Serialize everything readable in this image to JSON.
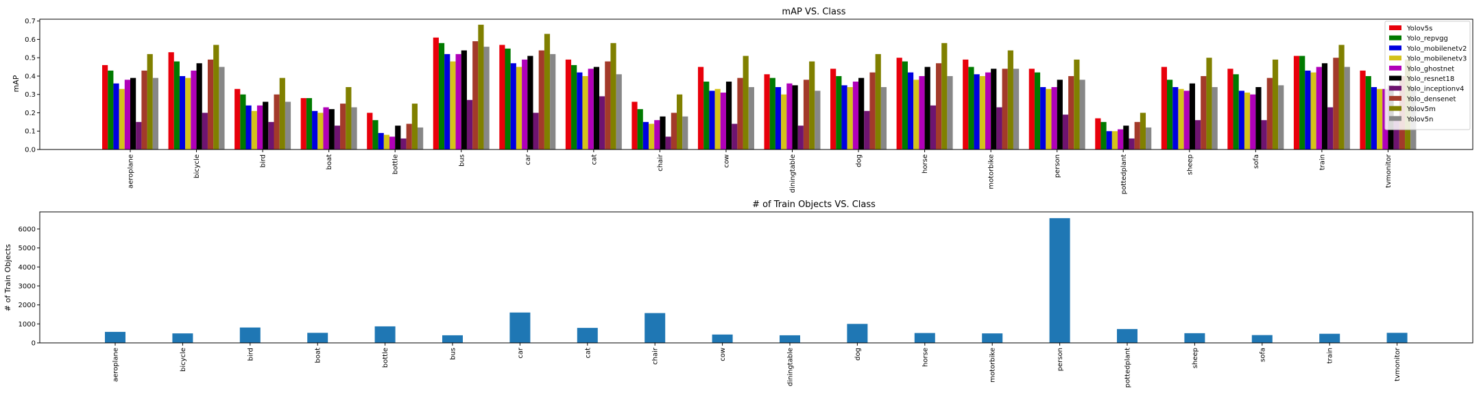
{
  "chart_data": [
    {
      "type": "bar",
      "title": "mAP VS. Class",
      "xlabel": "",
      "ylabel": "mAP",
      "ylim": [
        0,
        0.71
      ],
      "yticks": [
        "0.0",
        "0.1",
        "0.2",
        "0.3",
        "0.4",
        "0.5",
        "0.6",
        "0.7"
      ],
      "legend_position": "top-right",
      "grid": false,
      "categories": [
        "aeroplane",
        "bicycle",
        "bird",
        "boat",
        "bottle",
        "bus",
        "car",
        "cat",
        "chair",
        "cow",
        "diningtable",
        "dog",
        "horse",
        "motorbike",
        "person",
        "pottedplant",
        "sheep",
        "sofa",
        "train",
        "tvmonitor"
      ],
      "series": [
        {
          "name": "Yolov5s",
          "color": "#e8000b",
          "values": [
            0.46,
            0.53,
            0.33,
            0.28,
            0.2,
            0.61,
            0.57,
            0.49,
            0.26,
            0.45,
            0.41,
            0.44,
            0.5,
            0.49,
            0.44,
            0.17,
            0.45,
            0.44,
            0.51,
            0.43
          ]
        },
        {
          "name": "Yolo_repvgg",
          "color": "#007a00",
          "values": [
            0.43,
            0.48,
            0.3,
            0.28,
            0.16,
            0.58,
            0.55,
            0.46,
            0.22,
            0.37,
            0.39,
            0.4,
            0.48,
            0.45,
            0.42,
            0.15,
            0.38,
            0.41,
            0.51,
            0.4
          ]
        },
        {
          "name": "Yolo_mobilenetv2",
          "color": "#0000e0",
          "values": [
            0.36,
            0.4,
            0.24,
            0.21,
            0.09,
            0.52,
            0.47,
            0.42,
            0.15,
            0.32,
            0.34,
            0.35,
            0.42,
            0.41,
            0.34,
            0.1,
            0.34,
            0.32,
            0.43,
            0.34
          ]
        },
        {
          "name": "Yolo_mobilenetv3",
          "color": "#d4c21a",
          "values": [
            0.33,
            0.39,
            0.21,
            0.2,
            0.08,
            0.48,
            0.45,
            0.4,
            0.14,
            0.33,
            0.3,
            0.34,
            0.38,
            0.4,
            0.33,
            0.1,
            0.33,
            0.31,
            0.42,
            0.33
          ]
        },
        {
          "name": "Yolo_ghostnet",
          "color": "#b000b8",
          "values": [
            0.38,
            0.43,
            0.24,
            0.23,
            0.07,
            0.52,
            0.49,
            0.44,
            0.16,
            0.31,
            0.36,
            0.37,
            0.4,
            0.42,
            0.34,
            0.11,
            0.32,
            0.3,
            0.45,
            0.33
          ]
        },
        {
          "name": "Yolo_resnet18",
          "color": "#000000",
          "values": [
            0.39,
            0.47,
            0.26,
            0.22,
            0.13,
            0.54,
            0.51,
            0.45,
            0.18,
            0.37,
            0.35,
            0.39,
            0.45,
            0.44,
            0.38,
            0.13,
            0.36,
            0.34,
            0.47,
            0.35
          ]
        },
        {
          "name": "Yolo_inceptionv4",
          "color": "#6e1470",
          "values": [
            0.15,
            0.2,
            0.15,
            0.13,
            0.06,
            0.27,
            0.2,
            0.29,
            0.07,
            0.14,
            0.13,
            0.21,
            0.24,
            0.23,
            0.19,
            0.06,
            0.16,
            0.16,
            0.23,
            0.16
          ]
        },
        {
          "name": "Yolo_densenet",
          "color": "#a33a2a",
          "values": [
            0.43,
            0.49,
            0.3,
            0.25,
            0.14,
            0.59,
            0.54,
            0.48,
            0.2,
            0.39,
            0.38,
            0.42,
            0.47,
            0.44,
            0.4,
            0.15,
            0.4,
            0.39,
            0.5,
            0.4
          ]
        },
        {
          "name": "Yolov5m",
          "color": "#808000",
          "values": [
            0.52,
            0.57,
            0.39,
            0.34,
            0.25,
            0.68,
            0.63,
            0.58,
            0.3,
            0.51,
            0.48,
            0.52,
            0.58,
            0.54,
            0.49,
            0.2,
            0.5,
            0.49,
            0.57,
            0.49
          ]
        },
        {
          "name": "Yolov5n",
          "color": "#878787",
          "values": [
            0.39,
            0.45,
            0.26,
            0.23,
            0.12,
            0.56,
            0.52,
            0.41,
            0.18,
            0.34,
            0.32,
            0.34,
            0.4,
            0.44,
            0.38,
            0.12,
            0.34,
            0.35,
            0.45,
            0.34
          ]
        }
      ]
    },
    {
      "type": "bar",
      "title": "# of Train Objects VS. Class",
      "xlabel": "",
      "ylabel": "# of Train Objects",
      "ylim": [
        0,
        6900
      ],
      "yticks": [
        "0",
        "1000",
        "2000",
        "3000",
        "4000",
        "5000",
        "6000"
      ],
      "grid": false,
      "color": "#1f77b4",
      "categories": [
        "aeroplane",
        "bicycle",
        "bird",
        "boat",
        "bottle",
        "bus",
        "car",
        "cat",
        "chair",
        "cow",
        "diningtable",
        "dog",
        "horse",
        "motorbike",
        "person",
        "pottedplant",
        "sheep",
        "sofa",
        "train",
        "tvmonitor"
      ],
      "values": [
        580,
        500,
        810,
        530,
        870,
        400,
        1600,
        790,
        1570,
        440,
        400,
        1000,
        520,
        500,
        6570,
        730,
        510,
        410,
        480,
        530
      ]
    }
  ]
}
